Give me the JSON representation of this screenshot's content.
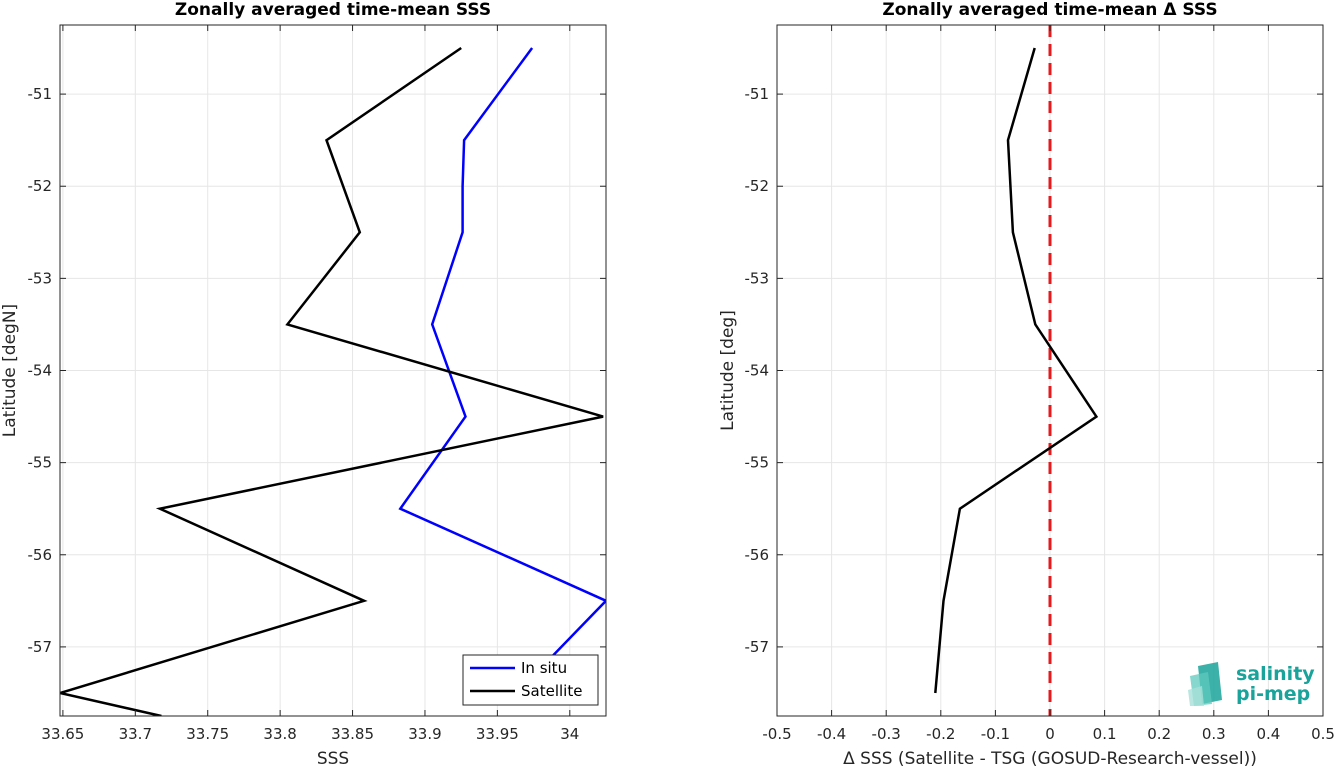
{
  "chart_data": [
    {
      "type": "line",
      "title": "Zonally averaged time-mean SSS",
      "xlabel": "SSS",
      "ylabel": "Latitude [degN]",
      "xlim": [
        33.648,
        34.025
      ],
      "ylim": [
        -57.75,
        -50.25
      ],
      "xticks": [
        33.65,
        33.7,
        33.75,
        33.8,
        33.85,
        33.9,
        33.95,
        34
      ],
      "xtick_labels": [
        "33.65",
        "33.7",
        "33.75",
        "33.8",
        "33.85",
        "33.9",
        "33.95",
        "34"
      ],
      "yticks": [
        -57,
        -56,
        -55,
        -54,
        -53,
        -52,
        -51
      ],
      "ytick_labels": [
        "-57",
        "-56",
        "-55",
        "-54",
        "-53",
        "-52",
        "-51"
      ],
      "grid": true,
      "legend": "bottom-right",
      "series": [
        {
          "name": "In situ",
          "color": "#0000ff",
          "x": [
            33.974,
            33.927,
            33.926,
            33.926,
            33.905,
            33.928,
            33.883,
            34.025,
            33.988
          ],
          "y": [
            -50.5,
            -51.5,
            -52.0,
            -52.5,
            -53.5,
            -54.5,
            -55.5,
            -56.5,
            -57.1
          ]
        },
        {
          "name": "Satellite",
          "color": "#000000",
          "x": [
            33.925,
            33.832,
            33.855,
            33.805,
            34.023,
            33.717,
            33.858,
            33.648,
            33.718
          ],
          "y": [
            -50.5,
            -51.5,
            -52.5,
            -53.5,
            -54.5,
            -55.5,
            -56.5,
            -57.5,
            -57.75
          ]
        }
      ]
    },
    {
      "type": "line",
      "title": "Zonally averaged time-mean Δ SSS",
      "xlabel": "Δ SSS (Satellite - TSG (GOSUD-Research-vessel))",
      "ylabel": "Latitude [deg]",
      "xlim": [
        -0.5,
        0.5
      ],
      "ylim": [
        -57.75,
        -50.25
      ],
      "xticks": [
        -0.5,
        -0.4,
        -0.3,
        -0.2,
        -0.1,
        0,
        0.1,
        0.2,
        0.3,
        0.4,
        0.5
      ],
      "xtick_labels": [
        "-0.5",
        "-0.4",
        "-0.3",
        "-0.2",
        "-0.1",
        "0",
        "0.1",
        "0.2",
        "0.3",
        "0.4",
        "0.5"
      ],
      "yticks": [
        -57,
        -56,
        -55,
        -54,
        -53,
        -52,
        -51
      ],
      "ytick_labels": [
        "-57",
        "-56",
        "-55",
        "-54",
        "-53",
        "-52",
        "-51"
      ],
      "grid": true,
      "reference_line": {
        "x": 0,
        "color": "#e41a1c",
        "style": "dashed"
      },
      "series": [
        {
          "color": "#000000",
          "x": [
            -0.028,
            -0.077,
            -0.068,
            -0.027,
            0.085,
            -0.165,
            -0.195,
            -0.21
          ],
          "y": [
            -50.5,
            -51.5,
            -52.5,
            -53.5,
            -54.5,
            -55.5,
            -56.5,
            -57.5
          ]
        }
      ]
    }
  ],
  "logo": {
    "line1": "salinity",
    "line2": "pi-mep",
    "color": "#1aa39a"
  }
}
